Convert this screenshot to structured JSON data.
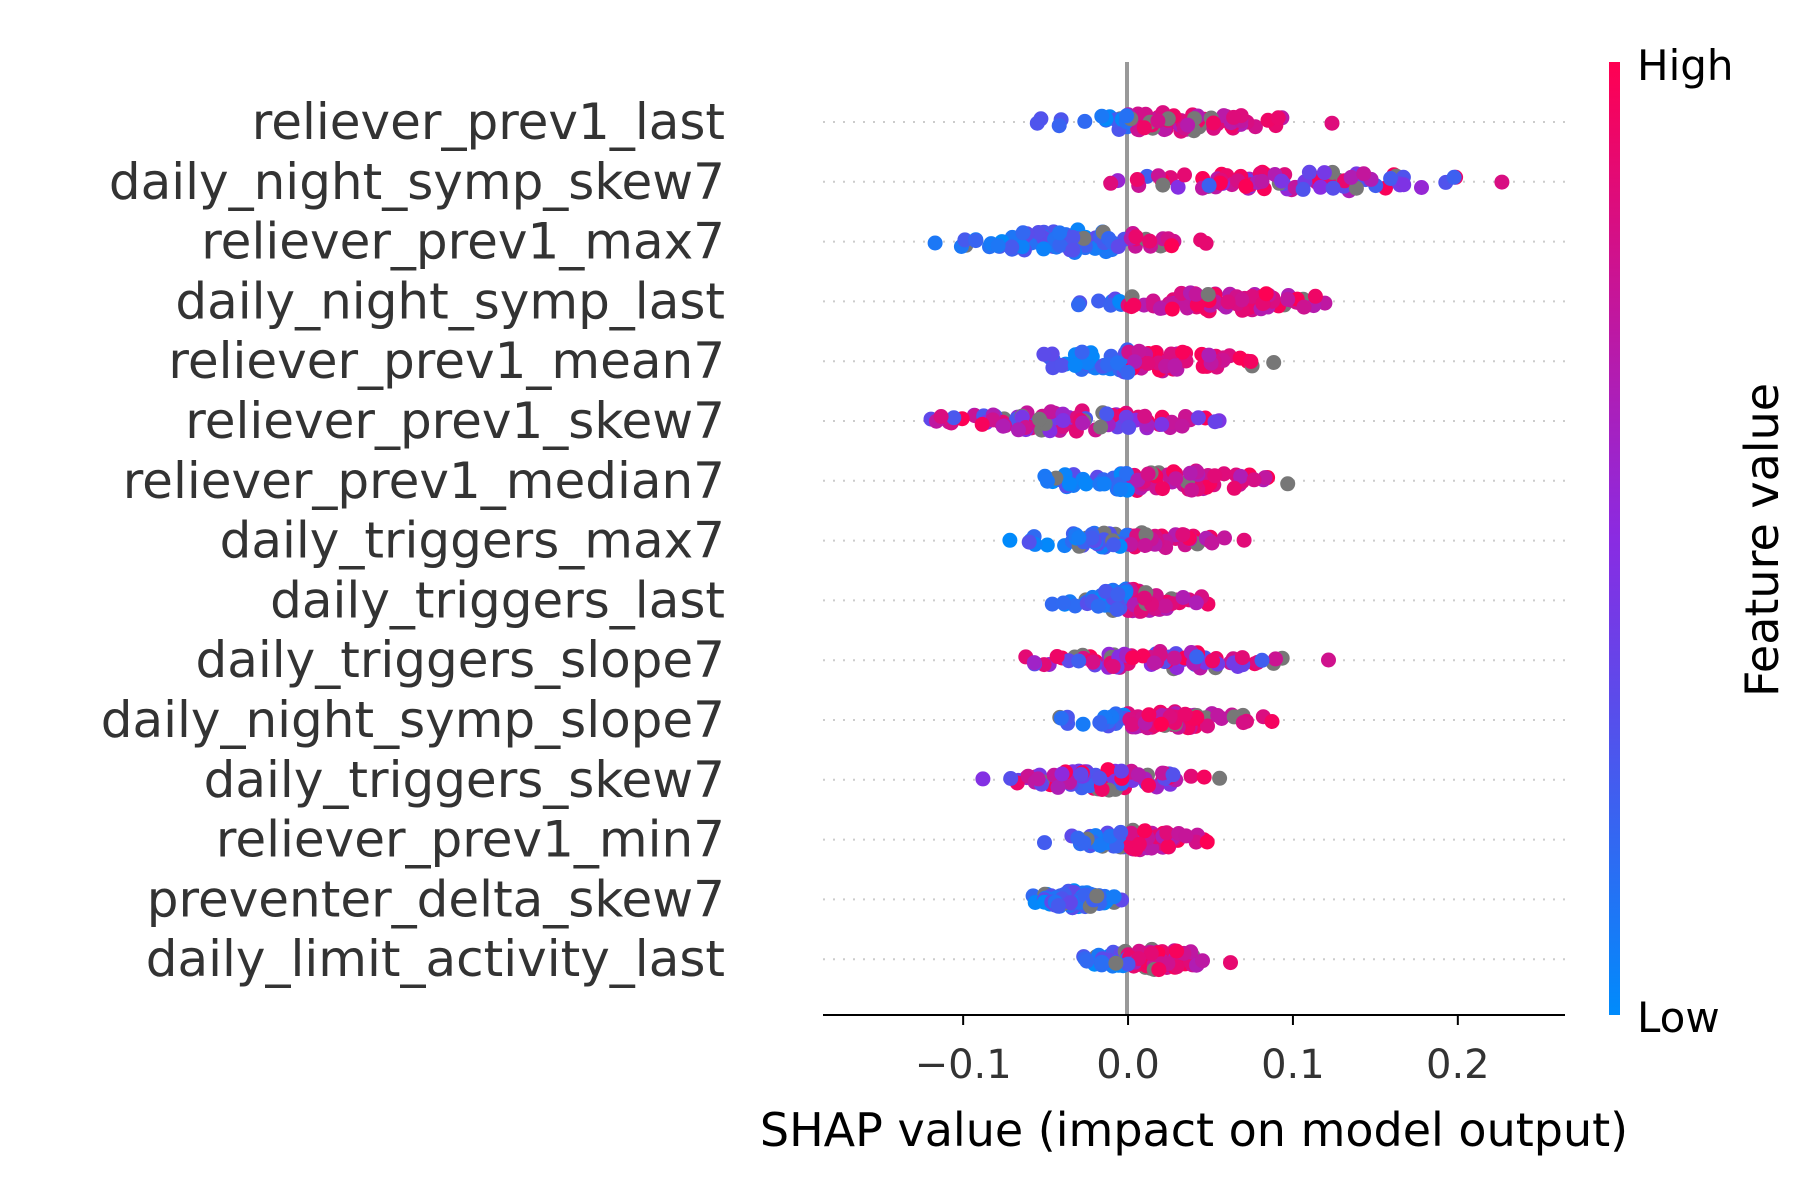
{
  "chart_data": {
    "type": "scatter",
    "subtype": "shap-beeswarm",
    "xlabel": "SHAP value (impact on model output)",
    "xticks": [
      -0.1,
      0.0,
      0.1,
      0.2
    ],
    "xtick_labels": [
      "−0.1",
      "0.0",
      "0.1",
      "0.2"
    ],
    "xlim": [
      -0.185,
      0.265
    ],
    "colorbar": {
      "label": "Feature value",
      "high_label": "High",
      "low_label": "Low",
      "low_color": "#008bfb",
      "mid_color": "#8a2be2",
      "high_color": "#ff0052"
    },
    "missing_color": "#777777",
    "zero_line_color": "#999999",
    "features": [
      {
        "name": "reliever_prev1_last",
        "min": -0.08,
        "max": 0.135,
        "spread": 0.5
      },
      {
        "name": "daily_night_symp_skew7",
        "min": -0.045,
        "max": 0.245,
        "spread": 0.55
      },
      {
        "name": "reliever_prev1_max7",
        "min": -0.13,
        "max": 0.065,
        "spread": 0.6
      },
      {
        "name": "daily_night_symp_last",
        "min": -0.05,
        "max": 0.16,
        "spread": 0.5
      },
      {
        "name": "reliever_prev1_mean7",
        "min": -0.1,
        "max": 0.105,
        "spread": 0.6
      },
      {
        "name": "reliever_prev1_skew7",
        "min": -0.165,
        "max": 0.095,
        "spread": 0.55
      },
      {
        "name": "reliever_prev1_median7",
        "min": -0.075,
        "max": 0.115,
        "spread": 0.6
      },
      {
        "name": "daily_triggers_max7",
        "min": -0.085,
        "max": 0.085,
        "spread": 0.5
      },
      {
        "name": "daily_triggers_last",
        "min": -0.055,
        "max": 0.058,
        "spread": 0.6
      },
      {
        "name": "daily_triggers_slope7",
        "min": -0.083,
        "max": 0.13,
        "spread": 0.5
      },
      {
        "name": "daily_night_symp_slope7",
        "min": -0.06,
        "max": 0.105,
        "spread": 0.45
      },
      {
        "name": "daily_triggers_skew7",
        "min": -0.095,
        "max": 0.068,
        "spread": 0.55
      },
      {
        "name": "reliever_prev1_min7",
        "min": -0.062,
        "max": 0.063,
        "spread": 0.55
      },
      {
        "name": "preventer_delta_skew7",
        "min": -0.067,
        "max": 0.002,
        "spread": 0.45
      },
      {
        "name": "daily_limit_activity_last",
        "min": -0.04,
        "max": 0.072,
        "spread": 0.55
      }
    ]
  }
}
